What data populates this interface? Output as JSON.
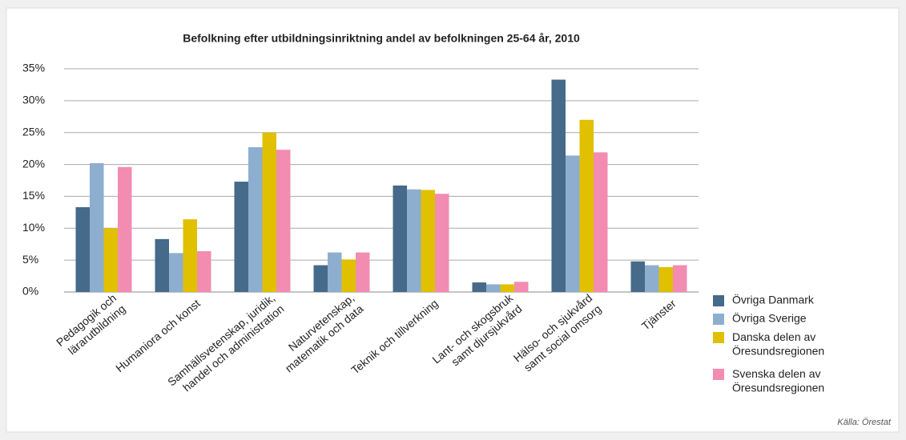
{
  "chart_data": {
    "type": "bar",
    "title": "Befolkning efter utbildningsinriktning andel av befolkningen 25-64 år, 2010",
    "categories": [
      "Pedagogik och\nlärarutbildning",
      "Humaniora och konst",
      "Samhällsvetenskap, juridik,\nhandel och administration",
      "Naturvetenskap,\nmatematik och data",
      "Teknik och tillverkning",
      "Lant- och skogsbruk\nsamt djursjukvård",
      "Hälso- och sjukvård\nsamt social omsorg",
      "Tjänster"
    ],
    "series": [
      {
        "name": "Övriga Danmark",
        "color": "#456a8a",
        "values": [
          13.3,
          8.3,
          17.3,
          4.2,
          16.7,
          1.5,
          33.3,
          4.8
        ]
      },
      {
        "name": "Övriga Sverige",
        "color": "#8eaecf",
        "values": [
          20.2,
          6.1,
          22.7,
          6.2,
          16.1,
          1.2,
          21.4,
          4.2
        ]
      },
      {
        "name": "Danska delen av\nÖresundsregionen",
        "color": "#e0c000",
        "values": [
          10.0,
          11.4,
          25.0,
          5.1,
          16.0,
          1.2,
          27.0,
          3.9
        ]
      },
      {
        "name": "Svenska delen av\nÖresundsregionen",
        "color": "#f28cb1",
        "values": [
          19.6,
          6.4,
          22.3,
          6.2,
          15.4,
          1.6,
          21.9,
          4.2
        ]
      }
    ],
    "ylim": [
      0,
      35
    ],
    "yticks": [
      {
        "value": 0,
        "label": "0%"
      },
      {
        "value": 5,
        "label": "5%"
      },
      {
        "value": 10,
        "label": "10%"
      },
      {
        "value": 15,
        "label": "15%"
      },
      {
        "value": 20,
        "label": "20%"
      },
      {
        "value": 25,
        "label": "25%"
      },
      {
        "value": 30,
        "label": "30%"
      },
      {
        "value": 35,
        "label": "35%"
      }
    ],
    "grid": true,
    "legend": "right",
    "source": "Källa: Örestat"
  }
}
